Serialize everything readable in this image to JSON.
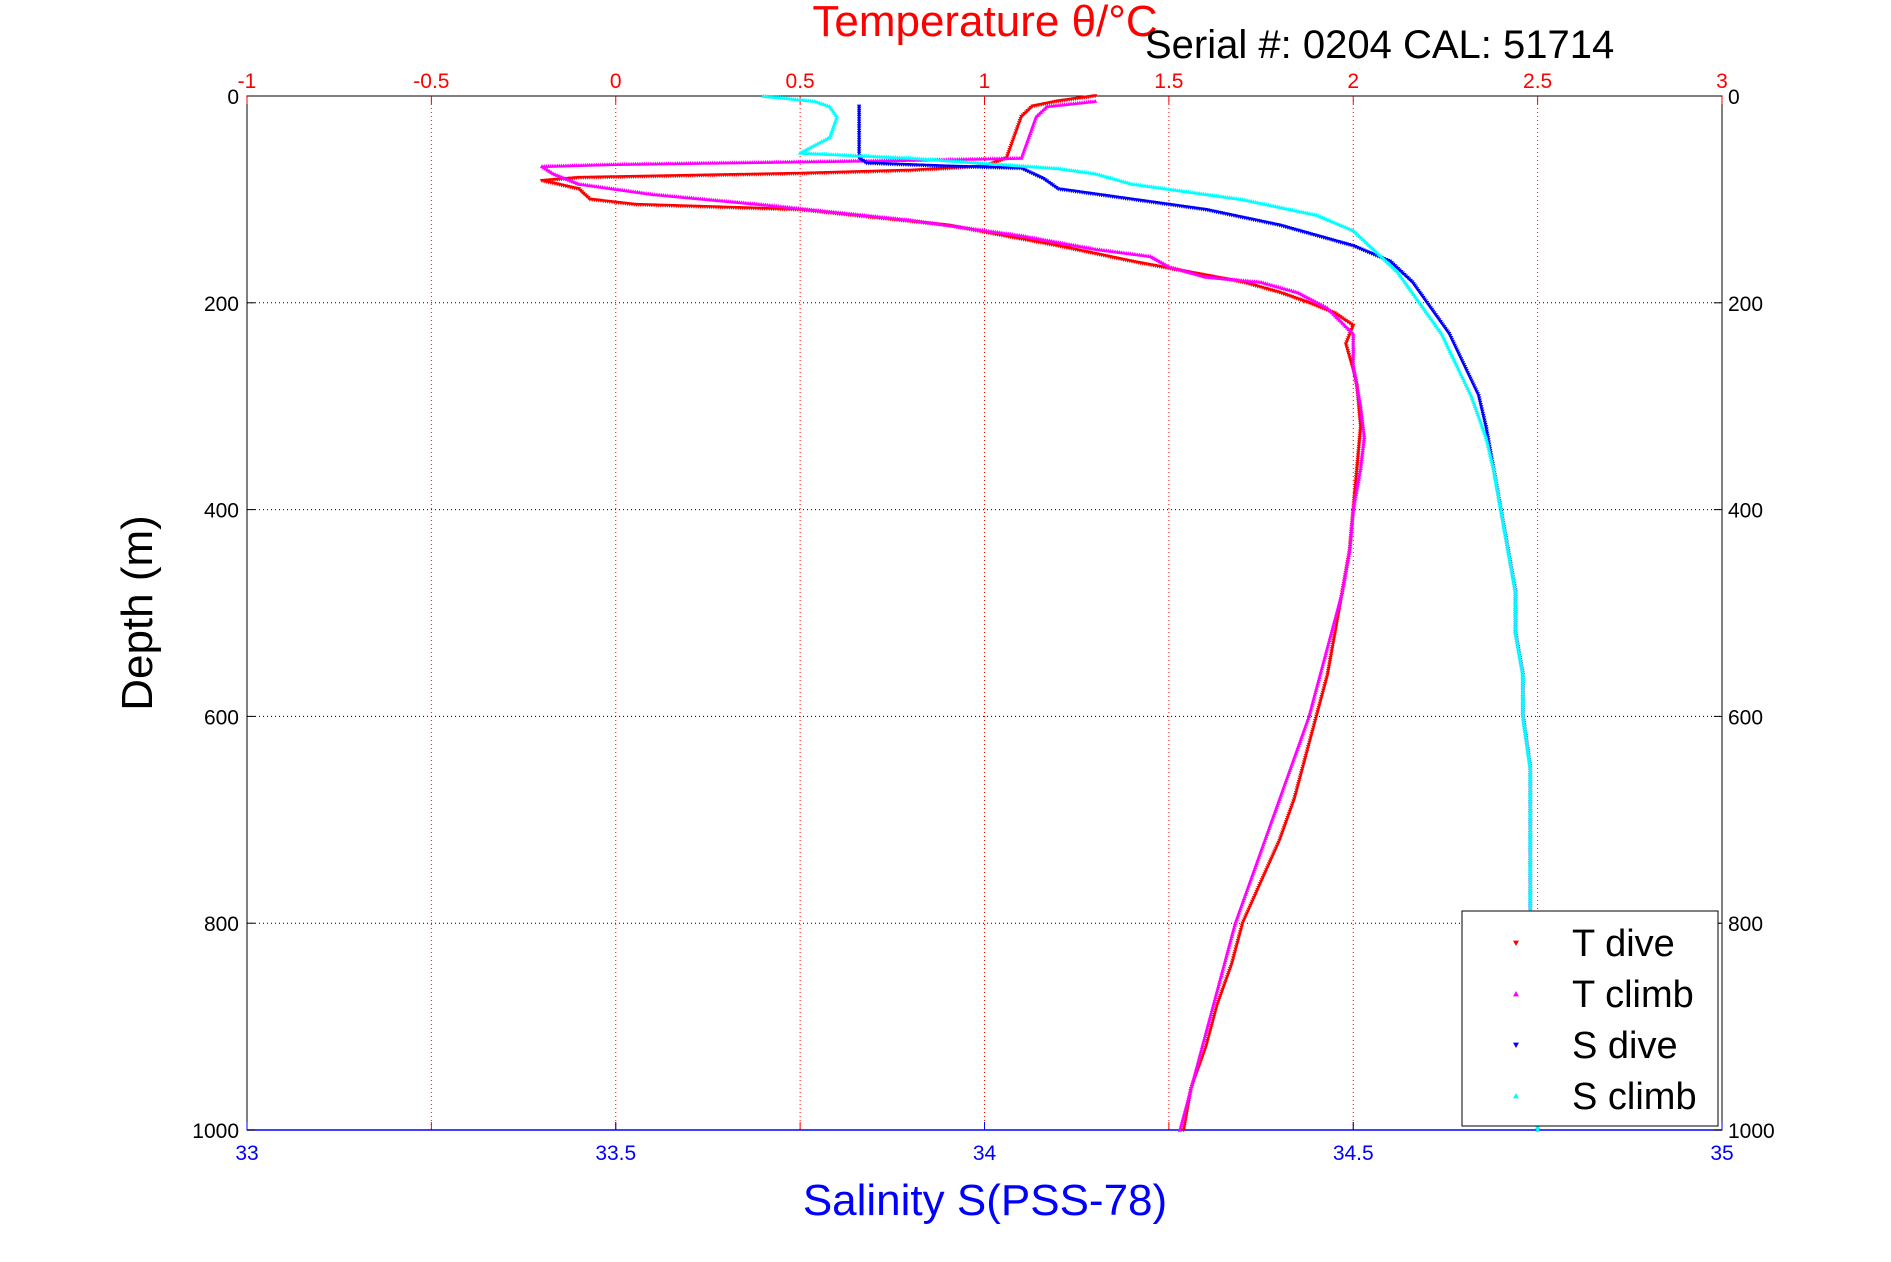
{
  "chart_data": {
    "type": "scatter",
    "title": "Temperature θ/°C",
    "subtitle": "Serial #: 0204   CAL: 51714",
    "x_top": {
      "label": "Temperature θ/°C",
      "range": [
        -1,
        3
      ],
      "ticks": [
        -1,
        -0.5,
        0,
        0.5,
        1,
        1.5,
        2,
        2.5,
        3
      ],
      "tick_labels": [
        "-1",
        "-0.5",
        "0",
        "0.5",
        "1",
        "1.5",
        "2",
        "2.5",
        "3"
      ],
      "color": "#ff0000"
    },
    "x_bottom": {
      "label": "Salinity S(PSS-78)",
      "range": [
        33,
        35
      ],
      "ticks": [
        33,
        33.5,
        34,
        34.5,
        35
      ],
      "tick_labels": [
        "33",
        "33.5",
        "34",
        "34.5",
        "35"
      ],
      "color": "#0000ff"
    },
    "y": {
      "label": "Depth (m)",
      "range": [
        0,
        1000
      ],
      "inverted": true,
      "ticks": [
        0,
        200,
        400,
        600,
        800,
        1000
      ],
      "tick_labels": [
        "0",
        "200",
        "400",
        "600",
        "800",
        "1000"
      ]
    },
    "grid": true,
    "legend_position": "bottom-right",
    "series": [
      {
        "name": "T dive",
        "axis": "temperature",
        "marker": "triangle-down",
        "color": "#ff0000",
        "points": [
          [
            1.3,
            0
          ],
          [
            1.2,
            5
          ],
          [
            1.13,
            10
          ],
          [
            1.1,
            20
          ],
          [
            1.08,
            40
          ],
          [
            1.06,
            60
          ],
          [
            1.0,
            68
          ],
          [
            0.8,
            72
          ],
          [
            0.5,
            75
          ],
          [
            -0.1,
            79
          ],
          [
            -0.2,
            82
          ],
          [
            -0.1,
            90
          ],
          [
            -0.07,
            100
          ],
          [
            0.05,
            105
          ],
          [
            0.5,
            110
          ],
          [
            0.9,
            125
          ],
          [
            1.2,
            145
          ],
          [
            1.4,
            160
          ],
          [
            1.55,
            170
          ],
          [
            1.7,
            180
          ],
          [
            1.8,
            190
          ],
          [
            1.88,
            200
          ],
          [
            1.95,
            210
          ],
          [
            2.0,
            222
          ],
          [
            1.98,
            240
          ],
          [
            2.0,
            265
          ],
          [
            2.01,
            280
          ],
          [
            2.02,
            320
          ],
          [
            2.01,
            360
          ],
          [
            2.0,
            400
          ],
          [
            1.99,
            440
          ],
          [
            1.97,
            480
          ],
          [
            1.95,
            520
          ],
          [
            1.93,
            560
          ],
          [
            1.9,
            600
          ],
          [
            1.87,
            640
          ],
          [
            1.84,
            680
          ],
          [
            1.8,
            720
          ],
          [
            1.75,
            760
          ],
          [
            1.7,
            800
          ],
          [
            1.67,
            840
          ],
          [
            1.63,
            880
          ],
          [
            1.6,
            920
          ],
          [
            1.56,
            960
          ],
          [
            1.54,
            1000
          ]
        ]
      },
      {
        "name": "T climb",
        "axis": "temperature",
        "marker": "triangle-up",
        "color": "#ff00ff",
        "points": [
          [
            1.3,
            5
          ],
          [
            1.17,
            10
          ],
          [
            1.14,
            20
          ],
          [
            1.12,
            40
          ],
          [
            1.1,
            60
          ],
          [
            0.8,
            62
          ],
          [
            0.4,
            64
          ],
          [
            0.0,
            66
          ],
          [
            -0.2,
            68
          ],
          [
            -0.17,
            75
          ],
          [
            -0.1,
            85
          ],
          [
            0.1,
            95
          ],
          [
            0.4,
            105
          ],
          [
            0.8,
            120
          ],
          [
            1.1,
            135
          ],
          [
            1.3,
            148
          ],
          [
            1.45,
            155
          ],
          [
            1.5,
            165
          ],
          [
            1.6,
            175
          ],
          [
            1.75,
            180
          ],
          [
            1.85,
            190
          ],
          [
            1.93,
            205
          ],
          [
            2.0,
            230
          ],
          [
            2.0,
            260
          ],
          [
            2.02,
            300
          ],
          [
            2.03,
            330
          ],
          [
            2.02,
            360
          ],
          [
            2.0,
            400
          ],
          [
            1.99,
            440
          ],
          [
            1.97,
            480
          ],
          [
            1.94,
            520
          ],
          [
            1.91,
            560
          ],
          [
            1.88,
            600
          ],
          [
            1.84,
            640
          ],
          [
            1.8,
            680
          ],
          [
            1.76,
            720
          ],
          [
            1.72,
            760
          ],
          [
            1.68,
            800
          ],
          [
            1.65,
            840
          ],
          [
            1.62,
            880
          ],
          [
            1.59,
            920
          ],
          [
            1.56,
            960
          ],
          [
            1.53,
            1000
          ]
        ]
      },
      {
        "name": "S dive",
        "axis": "salinity",
        "marker": "triangle-down",
        "color": "#0000ff",
        "points": [
          [
            33.83,
            10
          ],
          [
            33.83,
            20
          ],
          [
            33.83,
            40
          ],
          [
            33.83,
            60
          ],
          [
            33.84,
            65
          ],
          [
            33.95,
            68
          ],
          [
            34.05,
            70
          ],
          [
            34.08,
            80
          ],
          [
            34.1,
            90
          ],
          [
            34.15,
            95
          ],
          [
            34.3,
            110
          ],
          [
            34.4,
            125
          ],
          [
            34.5,
            145
          ],
          [
            34.55,
            160
          ],
          [
            34.58,
            180
          ],
          [
            34.6,
            200
          ],
          [
            34.61,
            210
          ],
          [
            34.63,
            230
          ],
          [
            34.65,
            260
          ],
          [
            34.67,
            290
          ],
          [
            34.68,
            320
          ],
          [
            34.69,
            360
          ],
          [
            34.7,
            400
          ],
          [
            34.71,
            440
          ],
          [
            34.72,
            480
          ],
          [
            34.72,
            520
          ],
          [
            34.73,
            560
          ],
          [
            34.73,
            600
          ],
          [
            34.74,
            650
          ],
          [
            34.74,
            700
          ],
          [
            34.74,
            750
          ],
          [
            34.74,
            800
          ],
          [
            34.74,
            850
          ],
          [
            34.75,
            900
          ],
          [
            34.75,
            950
          ],
          [
            34.75,
            1000
          ]
        ]
      },
      {
        "name": "S climb",
        "axis": "salinity",
        "marker": "triangle-up",
        "color": "#00ffff",
        "points": [
          [
            33.7,
            0
          ],
          [
            33.77,
            5
          ],
          [
            33.79,
            10
          ],
          [
            33.8,
            20
          ],
          [
            33.79,
            40
          ],
          [
            33.75,
            55
          ],
          [
            33.9,
            60
          ],
          [
            34.0,
            65
          ],
          [
            34.1,
            70
          ],
          [
            34.15,
            75
          ],
          [
            34.2,
            85
          ],
          [
            34.3,
            95
          ],
          [
            34.35,
            100
          ],
          [
            34.45,
            115
          ],
          [
            34.5,
            130
          ],
          [
            34.53,
            150
          ],
          [
            34.56,
            170
          ],
          [
            34.58,
            190
          ],
          [
            34.6,
            210
          ],
          [
            34.62,
            230
          ],
          [
            34.64,
            260
          ],
          [
            34.66,
            290
          ],
          [
            34.68,
            330
          ],
          [
            34.69,
            360
          ],
          [
            34.7,
            400
          ],
          [
            34.71,
            440
          ],
          [
            34.72,
            480
          ],
          [
            34.72,
            520
          ],
          [
            34.73,
            560
          ],
          [
            34.73,
            600
          ],
          [
            34.74,
            650
          ],
          [
            34.74,
            700
          ],
          [
            34.74,
            750
          ],
          [
            34.74,
            800
          ],
          [
            34.74,
            850
          ],
          [
            34.74,
            900
          ],
          [
            34.75,
            950
          ],
          [
            34.75,
            1000
          ]
        ]
      }
    ],
    "legend": [
      {
        "label": "T dive",
        "color": "#ff0000",
        "marker": "triangle-down"
      },
      {
        "label": "T climb",
        "color": "#ff00ff",
        "marker": "triangle-up"
      },
      {
        "label": "S dive",
        "color": "#0000ff",
        "marker": "triangle-down"
      },
      {
        "label": "S climb",
        "color": "#00ffff",
        "marker": "triangle-up"
      }
    ]
  }
}
